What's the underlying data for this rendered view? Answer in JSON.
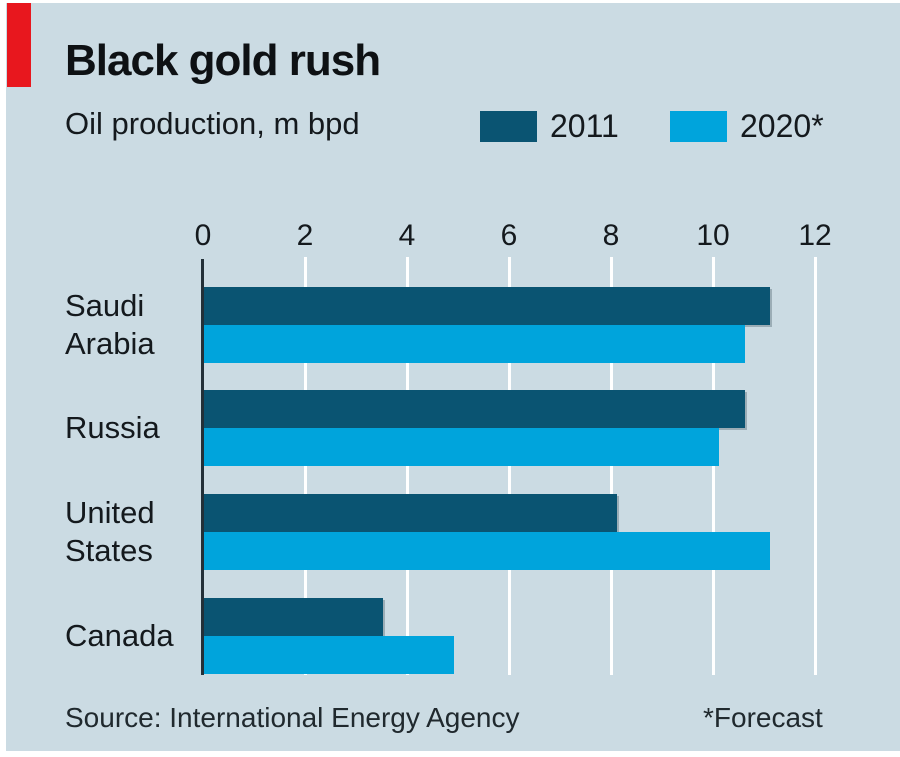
{
  "colors": {
    "background": "#cbdbe3",
    "accent_red": "#e8171e",
    "bar_2011": "#0a5472",
    "bar_2020": "#00a4dc",
    "axis_line": "#233038",
    "gridline": "#ffffff",
    "title_text": "#0e1114",
    "footer_text": "#20292e"
  },
  "header": {
    "title": "Black gold rush",
    "subtitle": "Oil production, m bpd"
  },
  "legend": [
    {
      "label": "2011",
      "color": "#0a5472"
    },
    {
      "label": "2020*",
      "color": "#00a4dc"
    }
  ],
  "footer": {
    "source": "Source: International Energy Agency",
    "note": "*Forecast"
  },
  "chart_data": {
    "type": "bar",
    "orientation": "horizontal",
    "title": "Black gold rush",
    "unit_label": "Oil production, m bpd",
    "categories": [
      "Saudi Arabia",
      "Russia",
      "United States",
      "Canada"
    ],
    "category_lines": [
      [
        "Saudi",
        "Arabia"
      ],
      [
        "Russia"
      ],
      [
        "United",
        "States"
      ],
      [
        "Canada"
      ]
    ],
    "series": [
      {
        "name": "2011",
        "color": "#0a5472",
        "values": [
          11.1,
          10.6,
          8.1,
          3.5
        ]
      },
      {
        "name": "2020*",
        "color": "#00a4dc",
        "values": [
          10.6,
          10.1,
          11.1,
          4.9
        ]
      }
    ],
    "xlim": [
      0,
      12
    ],
    "xticks": [
      0,
      2,
      4,
      6,
      8,
      10,
      12
    ],
    "grid": "vertical-white-gridlines",
    "legend_position": "top",
    "source": "International Energy Agency",
    "footnote": "*Forecast"
  }
}
